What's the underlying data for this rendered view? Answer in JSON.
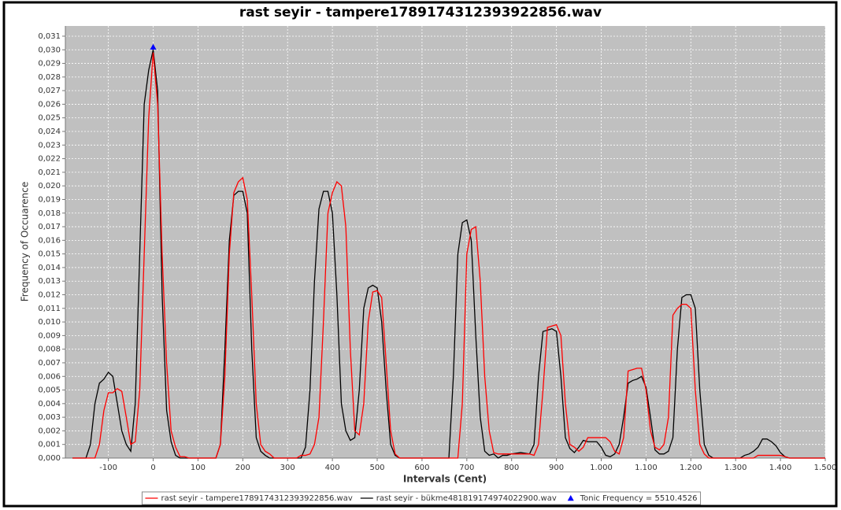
{
  "chart_data": {
    "type": "line",
    "title": "rast seyir - tampere1789174312393922856.wav",
    "x_label": "Intervals (Cent)",
    "y_label": "Frequency of Occuarence",
    "xlim": [
      -196,
      1500
    ],
    "ylim": [
      0,
      0.03175
    ],
    "grid": true,
    "legend": "bottom",
    "xticks": [
      -100,
      0,
      100,
      200,
      300,
      400,
      500,
      600,
      700,
      800,
      900,
      {
        "value": 1000,
        "label": "1.000"
      },
      {
        "value": 1100,
        "label": "1.100"
      },
      {
        "value": 1200,
        "label": "1.200"
      },
      {
        "value": 1300,
        "label": "1.300"
      },
      {
        "value": 1400,
        "label": "1.400"
      },
      {
        "value": 1500,
        "label": "1.500"
      }
    ],
    "yticks": [
      {
        "value": 0,
        "label": "0,000"
      },
      {
        "value": 0.001,
        "label": "0,001"
      },
      {
        "value": 0.002,
        "label": "0,002"
      },
      {
        "value": 0.003,
        "label": "0,003"
      },
      {
        "value": 0.004,
        "label": "0,004"
      },
      {
        "value": 0.005,
        "label": "0,005"
      },
      {
        "value": 0.006,
        "label": "0,006"
      },
      {
        "value": 0.007,
        "label": "0,007"
      },
      {
        "value": 0.008,
        "label": "0,008"
      },
      {
        "value": 0.009,
        "label": "0,009"
      },
      {
        "value": 0.01,
        "label": "0,010"
      },
      {
        "value": 0.011,
        "label": "0,011"
      },
      {
        "value": 0.012,
        "label": "0,012"
      },
      {
        "value": 0.013,
        "label": "0,013"
      },
      {
        "value": 0.014,
        "label": "0,014"
      },
      {
        "value": 0.015,
        "label": "0,015"
      },
      {
        "value": 0.016,
        "label": "0,016"
      },
      {
        "value": 0.017,
        "label": "0,017"
      },
      {
        "value": 0.018,
        "label": "0,018"
      },
      {
        "value": 0.019,
        "label": "0,019"
      },
      {
        "value": 0.02,
        "label": "0,020"
      },
      {
        "value": 0.021,
        "label": "0,021"
      },
      {
        "value": 0.022,
        "label": "0,022"
      },
      {
        "value": 0.023,
        "label": "0,023"
      },
      {
        "value": 0.024,
        "label": "0,024"
      },
      {
        "value": 0.025,
        "label": "0,025"
      },
      {
        "value": 0.026,
        "label": "0,026"
      },
      {
        "value": 0.027,
        "label": "0,027"
      },
      {
        "value": 0.028,
        "label": "0,028"
      },
      {
        "value": 0.029,
        "label": "0,029"
      },
      {
        "value": 0.03,
        "label": "0,030"
      },
      {
        "value": 0.031,
        "label": "0,031"
      }
    ],
    "series": [
      {
        "name": "rast seyir - tampere1789174312393922856.wav",
        "color": "#ff0000",
        "x": [
          -180,
          -130,
          -120,
          -110,
          -100,
          -90,
          -80,
          -70,
          -60,
          -50,
          -40,
          -30,
          -20,
          -10,
          0,
          10,
          20,
          30,
          40,
          50,
          60,
          70,
          80,
          140,
          150,
          160,
          170,
          180,
          190,
          200,
          210,
          220,
          230,
          240,
          250,
          260,
          270,
          320,
          330,
          340,
          350,
          360,
          370,
          380,
          390,
          400,
          410,
          420,
          430,
          440,
          450,
          460,
          470,
          480,
          490,
          500,
          510,
          520,
          530,
          540,
          550,
          680,
          690,
          700,
          710,
          720,
          730,
          740,
          750,
          760,
          770,
          780,
          800,
          820,
          840,
          850,
          860,
          870,
          880,
          890,
          900,
          910,
          920,
          930,
          940,
          950,
          960,
          970,
          980,
          990,
          1000,
          1010,
          1020,
          1030,
          1040,
          1050,
          1060,
          1070,
          1080,
          1090,
          1100,
          1110,
          1120,
          1130,
          1140,
          1150,
          1160,
          1170,
          1180,
          1190,
          1200,
          1210,
          1220,
          1230,
          1240,
          1340,
          1350,
          1400,
          1410,
          1420,
          1500
        ],
        "values": [
          0,
          0,
          0.001,
          0.0035,
          0.0048,
          0.0048,
          0.0051,
          0.0049,
          0.003,
          0.001,
          0.0012,
          0.005,
          0.015,
          0.025,
          0.0298,
          0.026,
          0.015,
          0.007,
          0.002,
          0.0008,
          0.0001,
          0.0001,
          0,
          0,
          0.001,
          0.006,
          0.015,
          0.0195,
          0.0203,
          0.0206,
          0.019,
          0.012,
          0.004,
          0.001,
          0.0005,
          0.0003,
          0,
          0,
          0.0002,
          0.0002,
          0.0003,
          0.001,
          0.003,
          0.01,
          0.018,
          0.0195,
          0.0203,
          0.02,
          0.017,
          0.008,
          0.002,
          0.0017,
          0.004,
          0.01,
          0.0122,
          0.0123,
          0.0118,
          0.007,
          0.002,
          0.0003,
          0,
          0,
          0.004,
          0.015,
          0.0168,
          0.017,
          0.013,
          0.006,
          0.002,
          0.0004,
          0.0003,
          0.0003,
          0.0003,
          0.0003,
          0.0003,
          0.0002,
          0.001,
          0.005,
          0.0096,
          0.0097,
          0.0098,
          0.009,
          0.004,
          0.001,
          0.0008,
          0.0005,
          0.0008,
          0.0015,
          0.0015,
          0.0015,
          0.0015,
          0.0015,
          0.0012,
          0.0005,
          0.0003,
          0.0015,
          0.0064,
          0.0065,
          0.0066,
          0.0066,
          0.005,
          0.002,
          0.0008,
          0.0006,
          0.001,
          0.003,
          0.0105,
          0.011,
          0.0113,
          0.0113,
          0.011,
          0.005,
          0.001,
          0.0003,
          0,
          0,
          0.0002,
          0.0002,
          0.0001,
          0,
          0
        ]
      },
      {
        "name": "rast seyir - bükme481819174974022900.wav",
        "color": "#000000",
        "x": [
          -180,
          -150,
          -140,
          -130,
          -120,
          -110,
          -100,
          -90,
          -80,
          -70,
          -60,
          -50,
          -40,
          -30,
          -20,
          -10,
          0,
          10,
          20,
          30,
          40,
          50,
          60,
          140,
          150,
          160,
          170,
          180,
          190,
          200,
          210,
          220,
          230,
          240,
          250,
          260,
          330,
          340,
          350,
          360,
          370,
          380,
          390,
          400,
          410,
          420,
          430,
          440,
          450,
          460,
          470,
          480,
          490,
          500,
          510,
          520,
          530,
          540,
          550,
          660,
          670,
          680,
          690,
          700,
          710,
          720,
          730,
          740,
          750,
          760,
          770,
          780,
          790,
          800,
          820,
          840,
          850,
          860,
          870,
          880,
          890,
          900,
          910,
          920,
          930,
          940,
          950,
          960,
          970,
          980,
          990,
          1000,
          1010,
          1020,
          1030,
          1040,
          1050,
          1060,
          1070,
          1080,
          1090,
          1100,
          1110,
          1120,
          1130,
          1140,
          1150,
          1160,
          1170,
          1180,
          1190,
          1200,
          1210,
          1220,
          1230,
          1240,
          1250,
          1310,
          1320,
          1330,
          1340,
          1350,
          1360,
          1370,
          1380,
          1390,
          1400,
          1410,
          1420,
          1500
        ],
        "values": [
          0,
          0,
          0.001,
          0.004,
          0.0055,
          0.0058,
          0.0063,
          0.006,
          0.004,
          0.002,
          0.001,
          0.0005,
          0.004,
          0.015,
          0.026,
          0.0285,
          0.03,
          0.027,
          0.012,
          0.0035,
          0.0012,
          0.0002,
          0,
          0,
          0.001,
          0.008,
          0.016,
          0.0193,
          0.0196,
          0.0196,
          0.018,
          0.008,
          0.0015,
          0.0005,
          0.0002,
          0,
          0,
          0.0008,
          0.005,
          0.013,
          0.0183,
          0.0196,
          0.0196,
          0.018,
          0.012,
          0.004,
          0.002,
          0.0013,
          0.0015,
          0.005,
          0.011,
          0.0125,
          0.0127,
          0.0125,
          0.01,
          0.005,
          0.001,
          0.0002,
          0,
          0,
          0.006,
          0.015,
          0.0173,
          0.0175,
          0.016,
          0.009,
          0.003,
          0.0005,
          0.0002,
          0.0003,
          0,
          0.0002,
          0.0002,
          0.0003,
          0.0004,
          0.0003,
          0.001,
          0.006,
          0.0093,
          0.0094,
          0.0095,
          0.0093,
          0.006,
          0.0015,
          0.0007,
          0.0004,
          0.0008,
          0.0013,
          0.0012,
          0.0012,
          0.0012,
          0.0008,
          0.0002,
          0.0001,
          0.0003,
          0.001,
          0.003,
          0.0055,
          0.0057,
          0.0058,
          0.006,
          0.0052,
          0.003,
          0.0006,
          0.0003,
          0.0003,
          0.0005,
          0.0015,
          0.008,
          0.0118,
          0.012,
          0.012,
          0.011,
          0.005,
          0.001,
          0.0002,
          0,
          0,
          0.0002,
          0.0003,
          0.0005,
          0.0008,
          0.0014,
          0.0014,
          0.0012,
          0.0009,
          0.0004,
          0.0001,
          0,
          0
        ]
      },
      {
        "name": "Tonic Frequency = 5510.4526",
        "color": "#0000ff",
        "marker": "triangle",
        "x": [
          0
        ],
        "values": [
          0.0302
        ]
      }
    ]
  }
}
